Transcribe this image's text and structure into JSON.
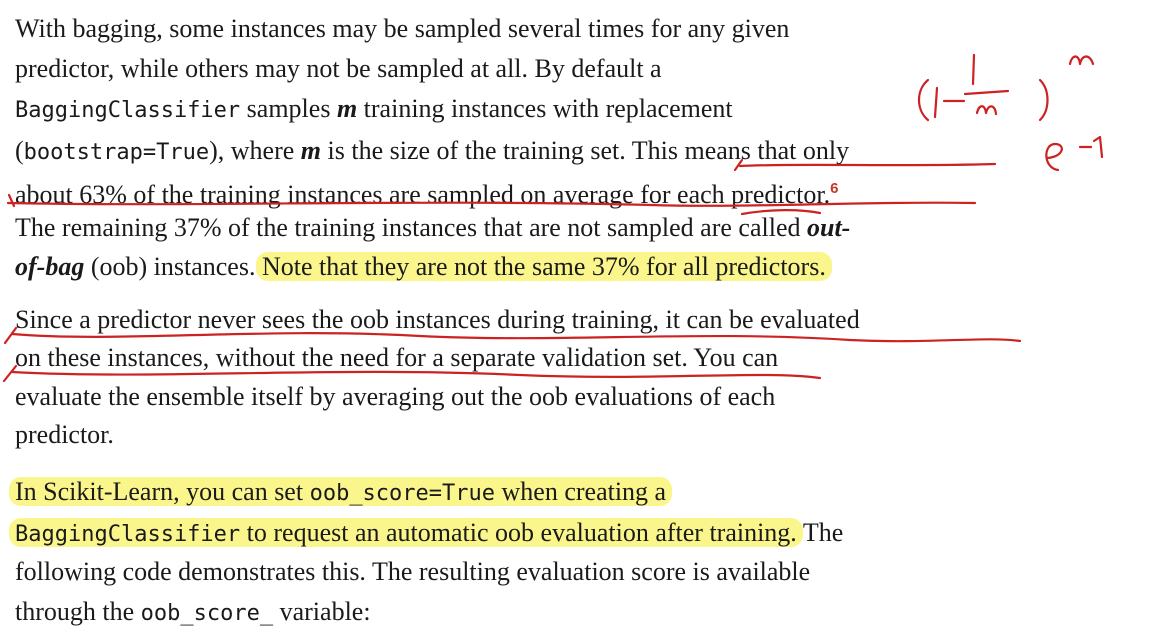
{
  "para1": {
    "line1": "With bagging, some instances may be sampled several times for any given",
    "line2": "predictor, while others may not be sampled at all. By default a",
    "line3_code": "BaggingClassifier",
    "line3_a": " samples ",
    "line3_m": "m",
    "line3_b": " training instances with replacement",
    "line4_open": "(",
    "line4_code": "bootstrap=True",
    "line4_a": "), where ",
    "line4_m": "m",
    "line4_b": " is the size of the training set. This means that only",
    "line5": "about 63% of the training instances are sampled on average for each predictor.",
    "footnote": "6",
    "line6_a": "The remaining 37% of the training instances that are not sampled are called ",
    "line6_em": "out-",
    "line7_em": "of-bag",
    "line7_a": " (oob) instances. ",
    "line7_highlight": "Note that they are not the same 37% for all predictors."
  },
  "para2": {
    "line1": "Since a predictor never sees the oob instances during training, it can be evaluated",
    "line2": "on these instances, without the need for a separate validation set. You can",
    "line3": "evaluate the ensemble itself by averaging out the oob evaluations of each",
    "line4": "predictor."
  },
  "para3": {
    "line1_a": "In Scikit-Learn, you can set ",
    "line1_code": "oob_score=True",
    "line1_b": " when creating a",
    "line2_code": "BaggingClassifier",
    "line2_a": " to request an automatic oob evaluation after training.",
    "line2_b": " The",
    "line3": "following code demonstrates this. The resulting evaluation score is available",
    "line4_a": "through the ",
    "line4_code": "oob_score_",
    "line4_b": " variable:"
  },
  "annotation_color": "#cc2222",
  "highlight_color": "#fbf68c"
}
